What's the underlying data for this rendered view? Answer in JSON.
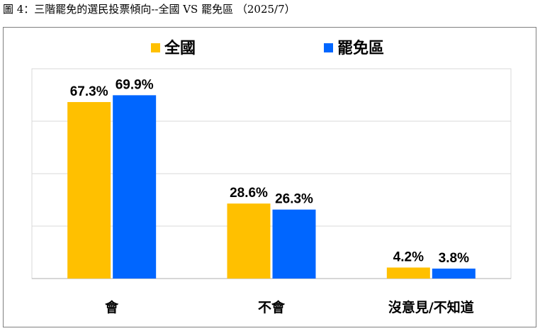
{
  "figure_title": "圖 4：三階罷免的選民投票傾向--全國 VS 罷免區 （2025/7）",
  "chart_data": {
    "type": "bar",
    "categories": [
      "會",
      "不會",
      "沒意見/不知道"
    ],
    "series": [
      {
        "name": "全國",
        "color": "#FFC000",
        "values": [
          67.3,
          28.6,
          4.2
        ],
        "labels": [
          "67.3%",
          "28.6%",
          "4.2%"
        ]
      },
      {
        "name": "罷免區",
        "color": "#0066FF",
        "values": [
          69.9,
          26.3,
          3.8
        ],
        "labels": [
          "69.9%",
          "26.3%",
          "3.8%"
        ]
      }
    ],
    "ylim": [
      0,
      80
    ],
    "grid": true,
    "legend": "top"
  }
}
